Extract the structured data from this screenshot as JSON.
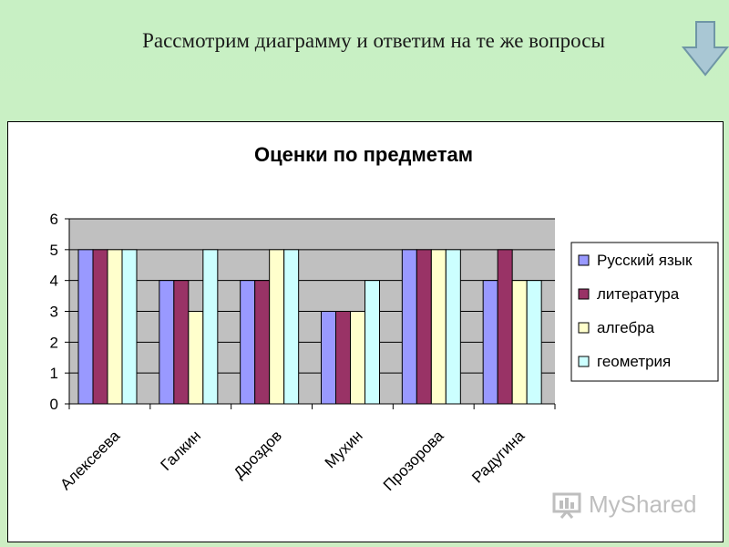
{
  "slide": {
    "title": "Рассмотрим диаграмму и ответим на те же вопросы",
    "nav_icon": "down-arrow-icon",
    "watermark": "MyShared"
  },
  "chart_data": {
    "type": "bar",
    "title": "Оценки по предметам",
    "xlabel": "",
    "ylabel": "",
    "ylim": [
      0,
      6
    ],
    "yticks": [
      0,
      1,
      2,
      3,
      4,
      5,
      6
    ],
    "grid": true,
    "legend_position": "right",
    "categories": [
      "Алексеева",
      "Галкин",
      "Дроздов",
      "Мухин",
      "Прозорова",
      "Радугина"
    ],
    "series": [
      {
        "name": "Русский язык",
        "color": "#9999ff",
        "values": [
          5,
          4,
          4,
          3,
          5,
          4
        ]
      },
      {
        "name": "литература",
        "color": "#993366",
        "values": [
          5,
          4,
          4,
          3,
          5,
          5
        ]
      },
      {
        "name": "алгебра",
        "color": "#ffffcc",
        "values": [
          5,
          3,
          5,
          3,
          5,
          4
        ]
      },
      {
        "name": "геометрия",
        "color": "#ccffff",
        "values": [
          5,
          5,
          5,
          4,
          5,
          4
        ]
      }
    ],
    "colors": {
      "plot_background": "#c0c0c0"
    }
  }
}
